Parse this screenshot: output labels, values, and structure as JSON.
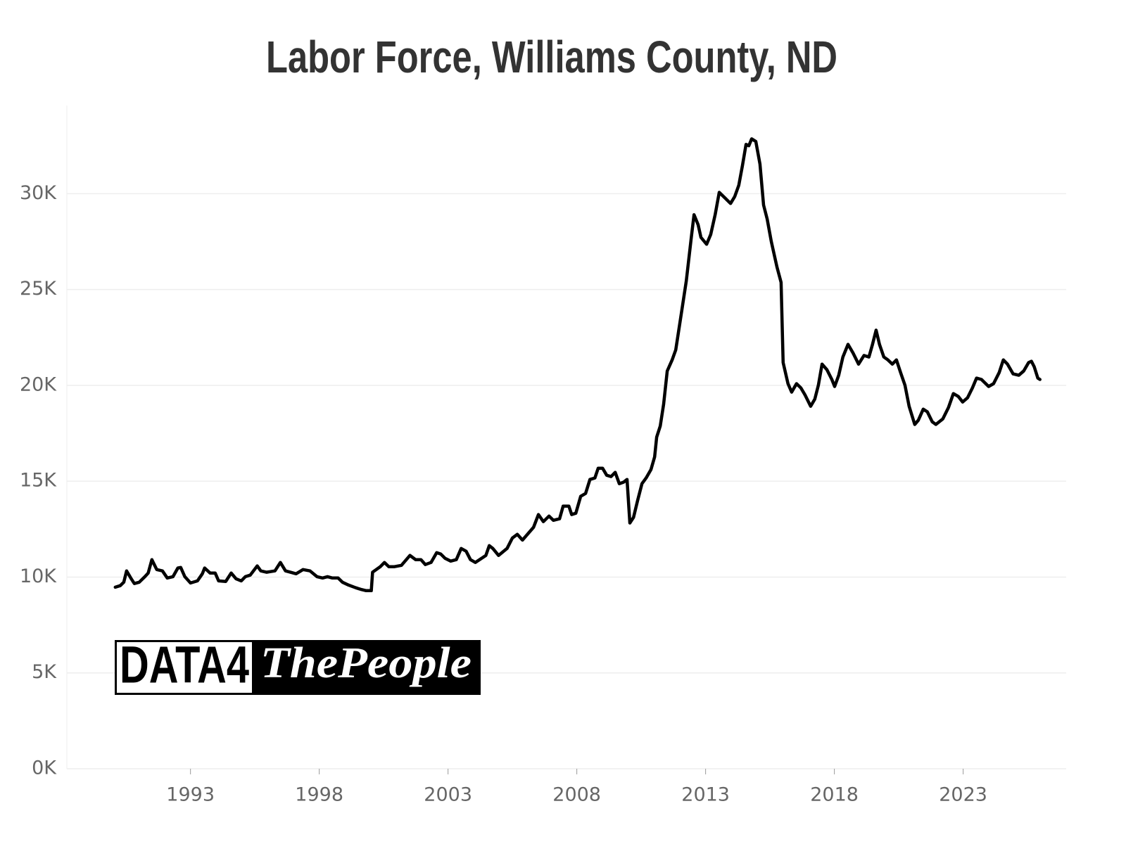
{
  "chart_data": {
    "type": "line",
    "title": "Labor Force, Williams County, ND",
    "logo": {
      "left": "DATA4",
      "right": "ThePeople"
    },
    "color": "#000000",
    "grid": true,
    "xlim": [
      1988.2,
      2027
    ],
    "xticks": [
      1993,
      1998,
      2003,
      2008,
      2013,
      2018,
      2023
    ],
    "ylim": [
      0,
      34600
    ],
    "yticks": [
      {
        "value": 0,
        "label": "0K"
      },
      {
        "value": 5000,
        "label": "5K"
      },
      {
        "value": 10000,
        "label": "10K"
      },
      {
        "value": 15000,
        "label": "15K"
      },
      {
        "value": 20000,
        "label": "20K"
      },
      {
        "value": 25000,
        "label": "25K"
      },
      {
        "value": 30000,
        "label": "30K"
      }
    ],
    "x": [
      1990.08,
      1990.27,
      1990.41,
      1990.52,
      1990.68,
      1990.82,
      1991.01,
      1991.23,
      1991.36,
      1991.5,
      1991.69,
      1991.91,
      1992.1,
      1992.32,
      1992.51,
      1992.62,
      1992.78,
      1993.0,
      1993.27,
      1993.46,
      1993.55,
      1993.76,
      1993.96,
      1994.09,
      1994.37,
      1994.58,
      1994.77,
      1994.97,
      1995.13,
      1995.32,
      1995.59,
      1995.73,
      1995.95,
      1996.28,
      1996.49,
      1996.69,
      1996.88,
      1997.1,
      1997.37,
      1997.64,
      1997.91,
      1998.13,
      1998.32,
      1998.51,
      1998.73,
      1998.9,
      1999.14,
      1999.42,
      1999.61,
      1999.82,
      2000.02,
      2000.07,
      2000.37,
      2000.53,
      2000.7,
      2000.92,
      2001.19,
      2001.52,
      2001.74,
      2001.95,
      2002.12,
      2002.34,
      2002.56,
      2002.72,
      2002.88,
      2003.1,
      2003.32,
      2003.51,
      2003.7,
      2003.87,
      2004.06,
      2004.47,
      2004.6,
      2004.74,
      2004.96,
      2005.29,
      2005.5,
      2005.69,
      2005.89,
      2006.32,
      2006.51,
      2006.7,
      2006.92,
      2007.09,
      2007.33,
      2007.47,
      2007.69,
      2007.8,
      2007.96,
      2008.15,
      2008.34,
      2008.51,
      2008.7,
      2008.83,
      2009.0,
      2009.16,
      2009.33,
      2009.49,
      2009.65,
      2009.82,
      2009.95,
      2010.06,
      2010.2,
      2010.36,
      2010.53,
      2010.69,
      2010.88,
      2011.02,
      2011.1,
      2011.24,
      2011.37,
      2011.51,
      2011.7,
      2011.84,
      2012.06,
      2012.25,
      2012.44,
      2012.55,
      2012.71,
      2012.82,
      2013.04,
      2013.2,
      2013.37,
      2013.53,
      2013.75,
      2013.97,
      2014.13,
      2014.29,
      2014.43,
      2014.57,
      2014.68,
      2014.79,
      2014.95,
      2015.11,
      2015.25,
      2015.39,
      2015.55,
      2015.77,
      2015.93,
      2016.01,
      2016.2,
      2016.34,
      2016.53,
      2016.7,
      2016.86,
      2017.08,
      2017.24,
      2017.38,
      2017.52,
      2017.71,
      2017.9,
      2018.01,
      2018.17,
      2018.33,
      2018.53,
      2018.72,
      2018.94,
      2019.15,
      2019.34,
      2019.48,
      2019.62,
      2019.75,
      2019.92,
      2020.08,
      2020.25,
      2020.41,
      2020.57,
      2020.74,
      2020.9,
      2021.12,
      2021.26,
      2021.45,
      2021.61,
      2021.8,
      2021.94,
      2022.21,
      2022.43,
      2022.62,
      2022.81,
      2022.98,
      2023.17,
      2023.36,
      2023.52,
      2023.71,
      2023.99,
      2024.18,
      2024.4,
      2024.56,
      2024.72,
      2024.94,
      2025.16,
      2025.35,
      2025.54,
      2025.65,
      2025.76,
      2025.9,
      2025.98
    ],
    "values": [
      9470,
      9550,
      9730,
      10320,
      9950,
      9660,
      9730,
      10020,
      10210,
      10910,
      10390,
      10320,
      9950,
      10020,
      10470,
      10500,
      10020,
      9690,
      9800,
      10170,
      10470,
      10210,
      10210,
      9800,
      9770,
      10210,
      9910,
      9800,
      10020,
      10100,
      10580,
      10320,
      10250,
      10320,
      10760,
      10320,
      10250,
      10170,
      10390,
      10320,
      10020,
      9950,
      10020,
      9950,
      9950,
      9730,
      9580,
      9440,
      9360,
      9290,
      9290,
      10250,
      10540,
      10760,
      10540,
      10540,
      10610,
      11130,
      10910,
      10910,
      10650,
      10760,
      11270,
      11200,
      10980,
      10830,
      10910,
      11490,
      11350,
      10910,
      10760,
      11130,
      11640,
      11490,
      11130,
      11490,
      12040,
      12230,
      11930,
      12600,
      13260,
      12890,
      13180,
      12960,
      13040,
      13700,
      13700,
      13260,
      13330,
      14210,
      14360,
      15090,
      15170,
      15680,
      15680,
      15310,
      15240,
      15460,
      14870,
      14950,
      15090,
      12820,
      13110,
      13990,
      14870,
      15170,
      15610,
      16270,
      17300,
      17880,
      19020,
      20750,
      21330,
      21850,
      23760,
      25450,
      27650,
      28900,
      28380,
      27720,
      27360,
      27870,
      28900,
      30070,
      29780,
      29490,
      29850,
      30440,
      31470,
      32570,
      32500,
      32860,
      32720,
      31540,
      29410,
      28680,
      27500,
      26180,
      25370,
      21190,
      20090,
      19650,
      20090,
      19870,
      19500,
      18910,
      19280,
      20010,
      21110,
      20820,
      20310,
      19940,
      20530,
      21480,
      22140,
      21700,
      21110,
      21560,
      21480,
      22140,
      22880,
      22140,
      21480,
      21330,
      21110,
      21330,
      20670,
      20010,
      18910,
      17960,
      18180,
      18760,
      18620,
      18100,
      17960,
      18250,
      18840,
      19570,
      19420,
      19130,
      19350,
      19870,
      20380,
      20310,
      19940,
      20090,
      20670,
      21330,
      21110,
      20600,
      20530,
      20750,
      21190,
      21260,
      20970,
      20380,
      20310
    ]
  }
}
